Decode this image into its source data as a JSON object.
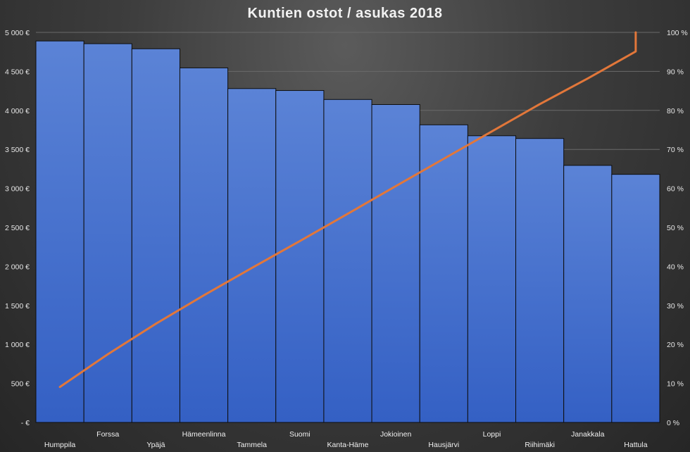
{
  "chart_data": {
    "type": "bar",
    "title": "Kuntien ostot / asukas 2018",
    "categories": [
      "Humppila",
      "Forssa",
      "Ypäjä",
      "Hämeenlinna",
      "Tammela",
      "Suomi",
      "Kanta-Häme",
      "Jokioinen",
      "Hausjärvi",
      "Loppi",
      "Riihimäki",
      "Janakkala",
      "Hattula"
    ],
    "series": [
      {
        "type": "bar",
        "axis": "left",
        "values": [
          4890,
          4855,
          4790,
          4545,
          4280,
          4255,
          4140,
          4075,
          3815,
          3675,
          3640,
          3295,
          3180
        ]
      },
      {
        "type": "line",
        "axis": "right",
        "values": [
          9.1,
          17.5,
          25.3,
          32.6,
          39.6,
          46.5,
          53.5,
          60.6,
          67.6,
          74.6,
          81.6,
          88.2,
          95.1
        ]
      }
    ],
    "y_left": {
      "range": [
        0,
        5000
      ],
      "ticks": [
        "-  €",
        "500 €",
        "1 000 €",
        "1 500 €",
        "2 000 €",
        "2 500 €",
        "3 000 €",
        "3 500 €",
        "4 000 €",
        "4 500 €",
        "5 000 €"
      ]
    },
    "y_right": {
      "range": [
        0,
        100
      ],
      "ticks": [
        "0 %",
        "10 %",
        "20 %",
        "30 %",
        "40 %",
        "50 %",
        "60 %",
        "70 %",
        "80 %",
        "90 %",
        "100 %"
      ]
    },
    "grid": true,
    "legend": "none",
    "colors": {
      "bar_top": "#5b83d6",
      "bar_bottom": "#3460c4",
      "bar_border": "#0d0d0d",
      "line": "#e2773a",
      "grid": "#6a6a6a"
    }
  }
}
